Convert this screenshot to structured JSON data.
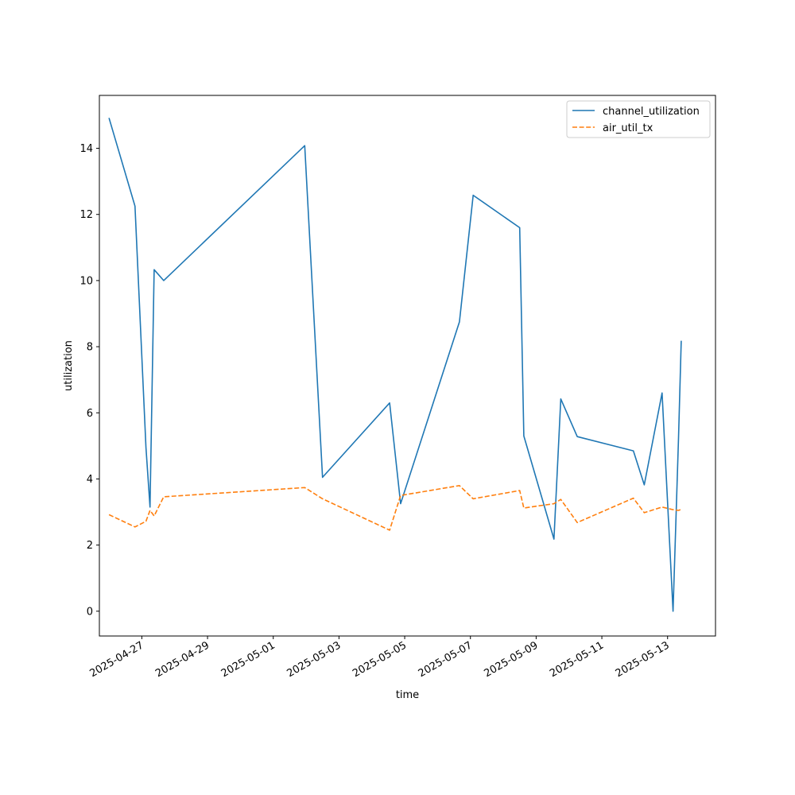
{
  "chart_data": {
    "type": "line",
    "title": "",
    "xlabel": "time",
    "ylabel": "utilization",
    "x_type": "date",
    "xlim": [
      "2025-04-25T17:00",
      "2025-05-14T11:00"
    ],
    "ylim": [
      -0.75,
      15.6
    ],
    "x_ticks": [
      "2025-04-27",
      "2025-04-29",
      "2025-05-01",
      "2025-05-03",
      "2025-05-05",
      "2025-05-07",
      "2025-05-09",
      "2025-05-11",
      "2025-05-13"
    ],
    "y_ticks": [
      0,
      2,
      4,
      6,
      8,
      10,
      12,
      14
    ],
    "grid": false,
    "legend_position": "top-right",
    "series": [
      {
        "name": "channel_utilization",
        "color": "#1f77b4",
        "dash": "solid",
        "points": [
          [
            "2025-04-26T00:00",
            14.92
          ],
          [
            "2025-04-26T19:00",
            12.25
          ],
          [
            "2025-04-27T03:00",
            4.95
          ],
          [
            "2025-04-27T06:00",
            3.15
          ],
          [
            "2025-04-27T09:00",
            10.33
          ],
          [
            "2025-04-27T16:00",
            10.0
          ],
          [
            "2025-05-01T23:00",
            14.08
          ],
          [
            "2025-05-02T12:00",
            4.05
          ],
          [
            "2025-05-04T13:00",
            6.3
          ],
          [
            "2025-05-04T21:00",
            3.25
          ],
          [
            "2025-05-06T16:00",
            8.75
          ],
          [
            "2025-05-07T02:00",
            12.58
          ],
          [
            "2025-05-08T12:00",
            11.6
          ],
          [
            "2025-05-08T15:00",
            5.3
          ],
          [
            "2025-05-09T13:00",
            2.18
          ],
          [
            "2025-05-09T18:00",
            6.42
          ],
          [
            "2025-05-10T06:00",
            5.28
          ],
          [
            "2025-05-11T23:00",
            4.85
          ],
          [
            "2025-05-12T07:00",
            3.82
          ],
          [
            "2025-05-12T20:00",
            6.6
          ],
          [
            "2025-05-13T04:00",
            0.0
          ],
          [
            "2025-05-13T08:00",
            5.25
          ],
          [
            "2025-05-13T10:00",
            8.18
          ]
        ]
      },
      {
        "name": "air_util_tx",
        "color": "#ff7f0e",
        "dash": "dashed",
        "points": [
          [
            "2025-04-26T00:00",
            2.92
          ],
          [
            "2025-04-26T19:00",
            2.55
          ],
          [
            "2025-04-27T03:00",
            2.72
          ],
          [
            "2025-04-27T06:00",
            3.05
          ],
          [
            "2025-04-27T09:00",
            2.88
          ],
          [
            "2025-04-27T16:00",
            3.46
          ],
          [
            "2025-05-01T23:00",
            3.74
          ],
          [
            "2025-05-02T12:00",
            3.4
          ],
          [
            "2025-05-04T13:00",
            2.45
          ],
          [
            "2025-05-04T21:00",
            3.5
          ],
          [
            "2025-05-06T16:00",
            3.8
          ],
          [
            "2025-05-07T02:00",
            3.4
          ],
          [
            "2025-05-08T12:00",
            3.65
          ],
          [
            "2025-05-08T15:00",
            3.12
          ],
          [
            "2025-05-09T13:00",
            3.25
          ],
          [
            "2025-05-09T18:00",
            3.38
          ],
          [
            "2025-05-10T06:00",
            2.68
          ],
          [
            "2025-05-11T23:00",
            3.42
          ],
          [
            "2025-05-12T07:00",
            2.98
          ],
          [
            "2025-05-12T20:00",
            3.15
          ],
          [
            "2025-05-13T04:00",
            3.07
          ],
          [
            "2025-05-13T08:00",
            3.05
          ],
          [
            "2025-05-13T10:00",
            3.08
          ]
        ]
      }
    ]
  }
}
